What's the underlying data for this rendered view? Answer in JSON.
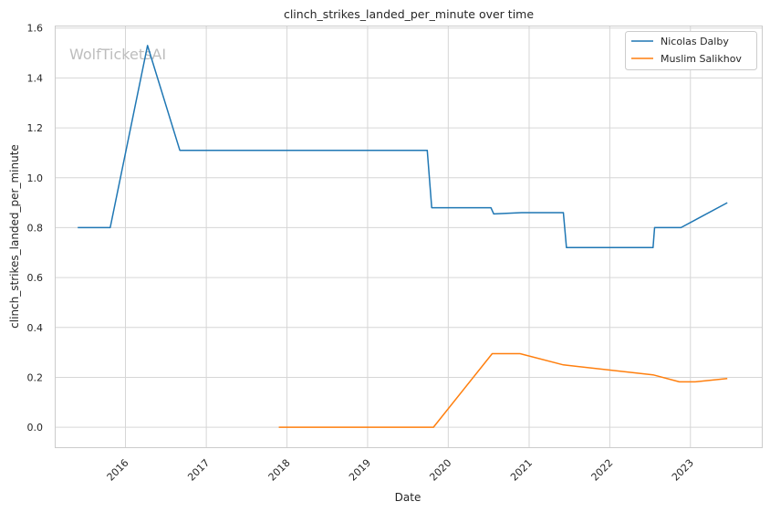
{
  "watermark": "WolfTicketsAI",
  "chart_data": {
    "type": "line",
    "title": "clinch_strikes_landed_per_minute over time",
    "xlabel": "Date",
    "ylabel": "clinch_strikes_landed_per_minute",
    "ylim": [
      -0.08,
      1.61
    ],
    "xlim": [
      "2015-02-15",
      "2023-11-20"
    ],
    "yticks": [
      "0.0",
      "0.2",
      "0.4",
      "0.6",
      "0.8",
      "1.0",
      "1.2",
      "1.4",
      "1.6"
    ],
    "xticks": [
      "2016",
      "2017",
      "2018",
      "2019",
      "2020",
      "2021",
      "2022",
      "2023"
    ],
    "grid": true,
    "legend_position": "top-right",
    "series": [
      {
        "name": "Nicolas Dalby",
        "color": "#1f77b4",
        "points": [
          [
            "2015-05-30",
            0.8
          ],
          [
            "2015-10-24",
            0.8
          ],
          [
            "2016-04-10",
            1.53
          ],
          [
            "2016-09-03",
            1.11
          ],
          [
            "2019-09-28",
            1.11
          ],
          [
            "2019-10-18",
            0.88
          ],
          [
            "2020-07-12",
            0.88
          ],
          [
            "2020-07-25",
            0.855
          ],
          [
            "2020-11-28",
            0.86
          ],
          [
            "2021-06-05",
            0.86
          ],
          [
            "2021-06-19",
            0.72
          ],
          [
            "2022-07-16",
            0.72
          ],
          [
            "2022-07-23",
            0.8
          ],
          [
            "2022-11-19",
            0.8
          ],
          [
            "2023-06-17",
            0.9
          ]
        ]
      },
      {
        "name": "Muslim Salikhov",
        "color": "#ff7f0e",
        "points": [
          [
            "2017-11-25",
            0.0
          ],
          [
            "2019-10-26",
            0.0
          ],
          [
            "2020-07-18",
            0.295
          ],
          [
            "2020-11-21",
            0.295
          ],
          [
            "2021-06-05",
            0.25
          ],
          [
            "2022-07-16",
            0.21
          ],
          [
            "2022-11-12",
            0.182
          ],
          [
            "2023-01-21",
            0.182
          ],
          [
            "2023-06-17",
            0.195
          ]
        ]
      }
    ]
  }
}
